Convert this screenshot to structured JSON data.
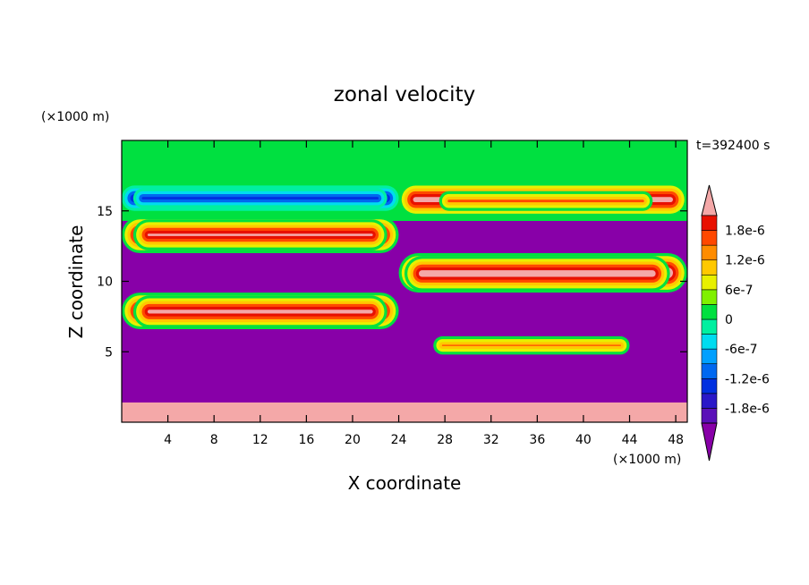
{
  "chart_data": {
    "type": "heatmap",
    "title": "zonal velocity",
    "xlabel": "X coordinate",
    "ylabel": "Z coordinate",
    "x_unit": "(×1000 m)",
    "y_unit": "(×1000 m)",
    "time_label": "t=392400 s",
    "xlim": [
      0,
      49
    ],
    "ylim": [
      0,
      20
    ],
    "x_ticks": [
      4,
      8,
      12,
      16,
      20,
      24,
      28,
      32,
      36,
      40,
      44,
      48
    ],
    "y_ticks": [
      5,
      10,
      15
    ],
    "colorbar": {
      "levels": [
        -2.1e-06,
        -1.8e-06,
        -1.5e-06,
        -1.2e-06,
        -9e-07,
        -6e-07,
        -3e-07,
        0,
        3e-07,
        6e-07,
        9e-07,
        1.2e-06,
        1.5e-06,
        1.8e-06,
        2.1e-06
      ],
      "colors": [
        "#8800a8",
        "#5a10b8",
        "#2a18c8",
        "#0030e0",
        "#0068f0",
        "#00a0ff",
        "#00dcf0",
        "#00f0a0",
        "#00e040",
        "#80f000",
        "#e8f000",
        "#ffc800",
        "#ff8c00",
        "#ff4800",
        "#e81000",
        "#f4a8a8"
      ],
      "labels": [
        "1.8e-6",
        "1.2e-6",
        "6e-7",
        "0",
        "-6e-7",
        "-1.2e-6",
        "-1.8e-6"
      ],
      "label_values": [
        1.8e-06,
        1.2e-06,
        6e-07,
        0,
        -6e-07,
        -1.2e-06,
        -1.8e-06
      ]
    },
    "fields": {
      "upper_background": 1.5e-07,
      "lower_background": -2.5e-06,
      "bottom_layer": 2.5e-06,
      "layers": [
        {
          "z_range": [
            15,
            16.8
          ],
          "x_range": [
            0,
            24
          ],
          "value": -2.5e-06
        },
        {
          "z_range": [
            12,
            14.6
          ],
          "x_range": [
            0,
            24
          ],
          "value": 2.5e-06
        },
        {
          "z_range": [
            6.6,
            9.2
          ],
          "x_range": [
            0,
            24
          ],
          "value": 2.5e-06
        },
        {
          "z_range": [
            14.6,
            17
          ],
          "x_range": [
            24,
            49
          ],
          "value": 2.5e-06
        },
        {
          "z_range": [
            9.2,
            12
          ],
          "x_range": [
            24,
            49
          ],
          "value": 2.5e-06
        }
      ],
      "cores": [
        {
          "x_range": [
            1,
            23
          ],
          "z_range": [
            15.2,
            16.6
          ],
          "value": -2.5e-06
        },
        {
          "x_range": [
            1,
            23
          ],
          "z_range": [
            12.2,
            14.4
          ],
          "value": 2.5e-06
        },
        {
          "x_range": [
            1,
            23
          ],
          "z_range": [
            6.7,
            9.0
          ],
          "value": 2.5e-06
        },
        {
          "x_range": [
            27.5,
            46
          ],
          "z_range": [
            15.0,
            16.4
          ],
          "value": 2.5e-06
        },
        {
          "x_range": [
            24.5,
            47.5
          ],
          "z_range": [
            9.3,
            11.8
          ],
          "value": 2.5e-06
        },
        {
          "x_range": [
            27,
            44
          ],
          "z_range": [
            4.8,
            6.1
          ],
          "value": 2.5e-06
        }
      ]
    }
  }
}
